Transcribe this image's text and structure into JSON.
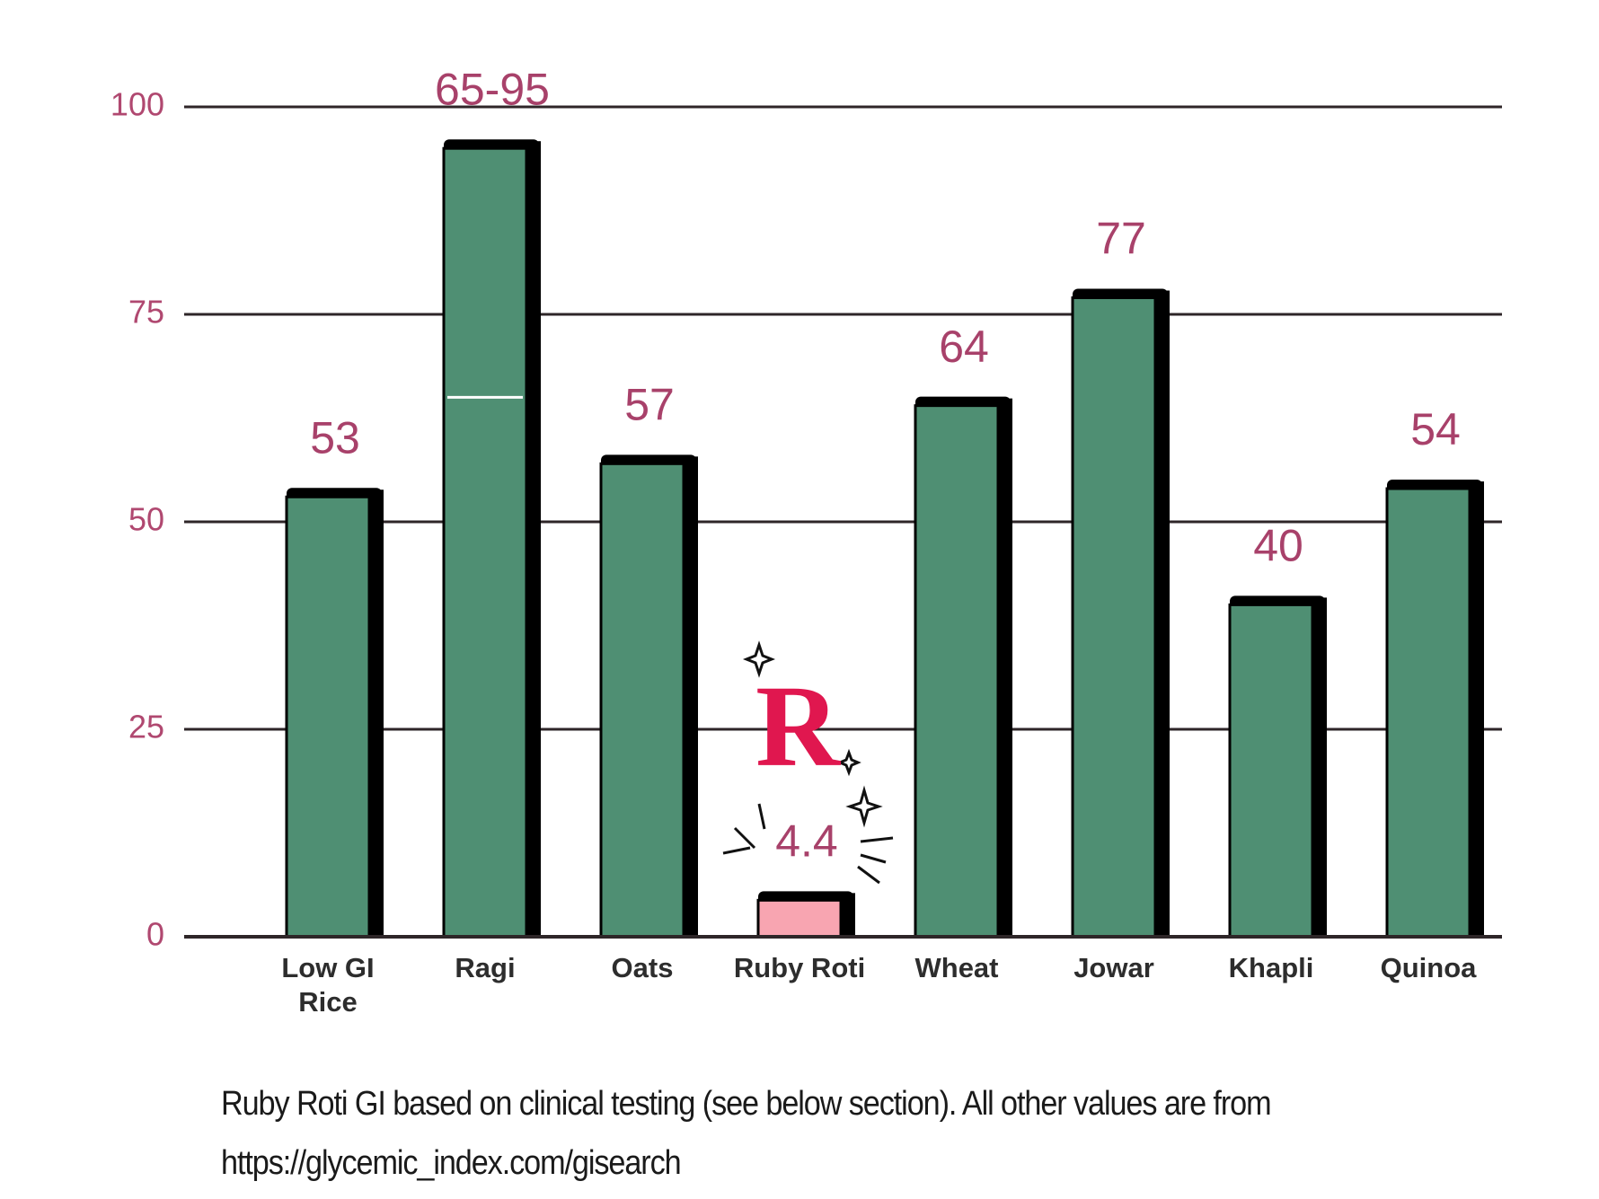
{
  "chart_data": {
    "type": "bar",
    "categories": [
      "Low GI Rice",
      "Ragi",
      "Oats",
      "Ruby Roti",
      "Wheat",
      "Jowar",
      "Khapli",
      "Quinoa"
    ],
    "values": [
      53,
      95,
      57,
      4.4,
      64,
      77,
      40,
      54
    ],
    "value_labels": [
      "53",
      "65-95",
      "57",
      "4.4",
      "64",
      "77",
      "40",
      "54"
    ],
    "range_low": [
      null,
      65,
      null,
      null,
      null,
      null,
      null,
      null
    ],
    "colors": [
      "#4f8f73",
      "#4f8f73",
      "#4f8f73",
      "#f8a5b1",
      "#4f8f73",
      "#4f8f73",
      "#4f8f73",
      "#4f8f73"
    ],
    "ylim": [
      0,
      100
    ],
    "yticks": [
      0,
      25,
      50,
      75,
      100
    ],
    "grid": true,
    "logo_text": "R",
    "footnote": "Ruby Roti GI based on clinical testing (see below section). All other values are from https://glycemic_index.com/gisearch"
  }
}
